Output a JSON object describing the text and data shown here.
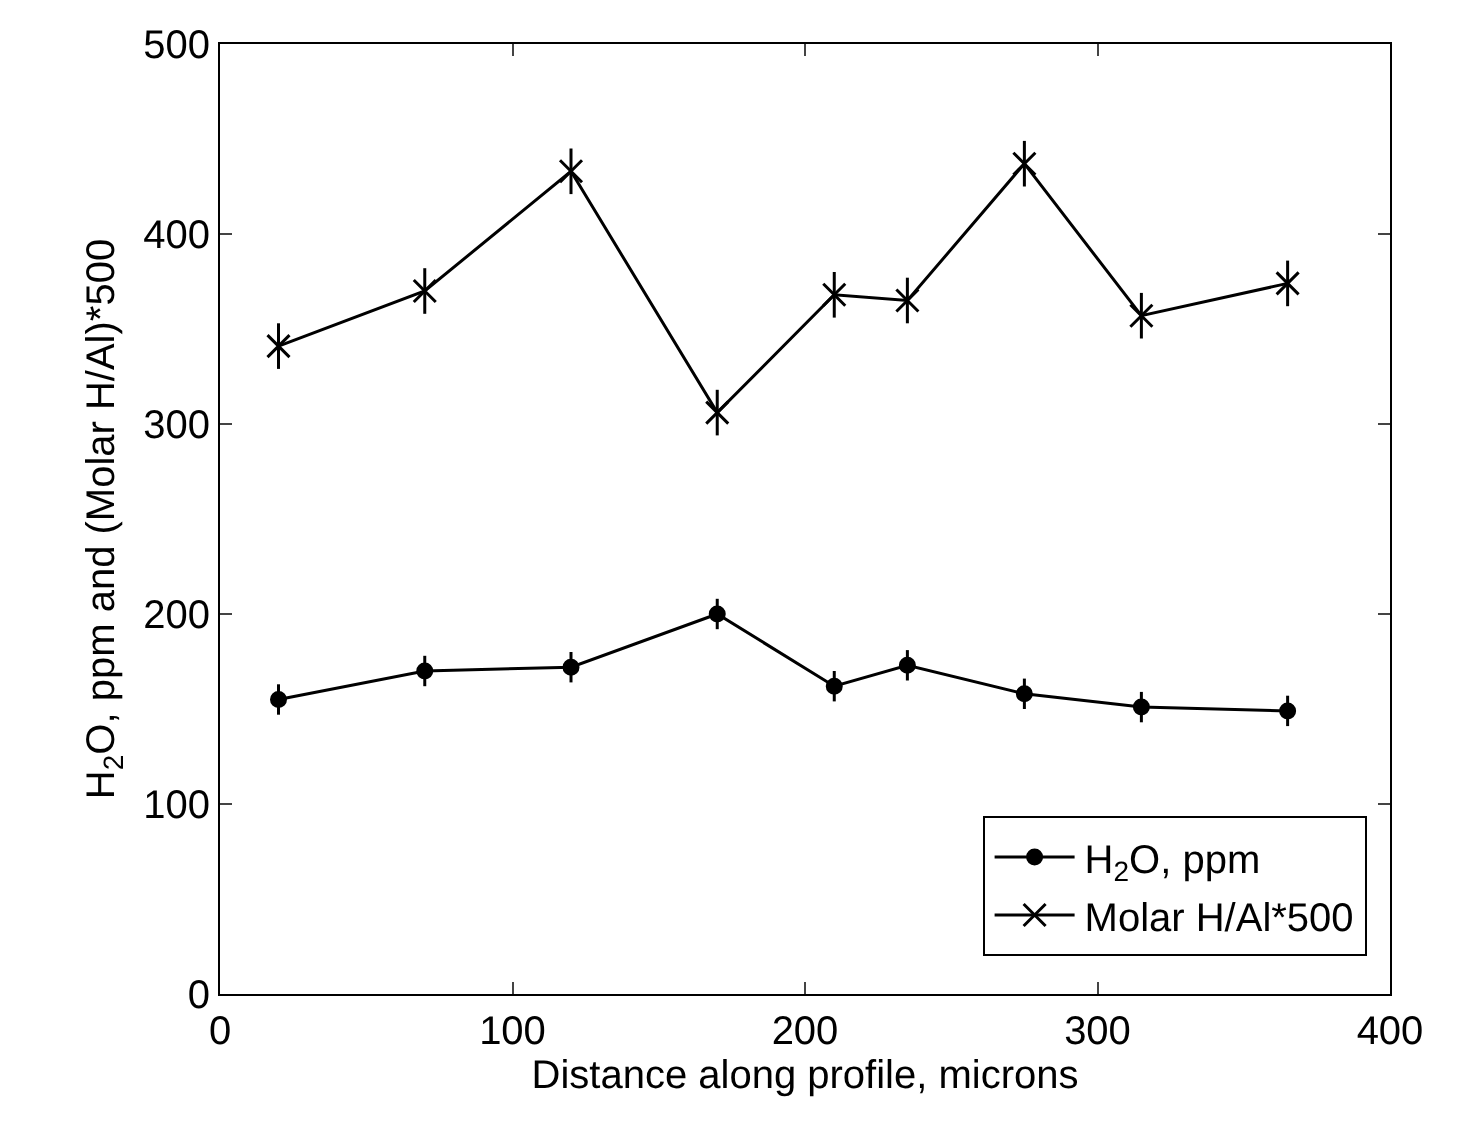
{
  "chart_data": {
    "type": "line",
    "xlabel": "Distance along profile, microns",
    "ylabel": "H$_{2}$O, ppm and (Molar H/Al)*500",
    "x": [
      20,
      70,
      120,
      170,
      210,
      235,
      275,
      315,
      365
    ],
    "series": [
      {
        "name": "H$_{2}$O, ppm",
        "color": "#000000",
        "marker": "circle",
        "values": [
          155,
          170,
          172,
          200,
          162,
          173,
          158,
          151,
          149
        ],
        "errors": [
          8,
          8,
          8,
          8,
          8,
          8,
          8,
          8,
          8
        ]
      },
      {
        "name": "Molar H/Al*500",
        "color": "#000000",
        "marker": "cross",
        "values": [
          341,
          370,
          433,
          306,
          368,
          365,
          437,
          357,
          374
        ],
        "errors": [
          12,
          12,
          12,
          12,
          12,
          12,
          12,
          12,
          12
        ]
      }
    ],
    "xlim": [
      0,
      400
    ],
    "xticks": [
      0,
      100,
      200,
      300,
      400
    ],
    "ylim": [
      0,
      500
    ],
    "yticks": [
      0,
      100,
      200,
      300,
      400,
      500
    ],
    "legend": "bottom right",
    "line_style": "solid"
  }
}
